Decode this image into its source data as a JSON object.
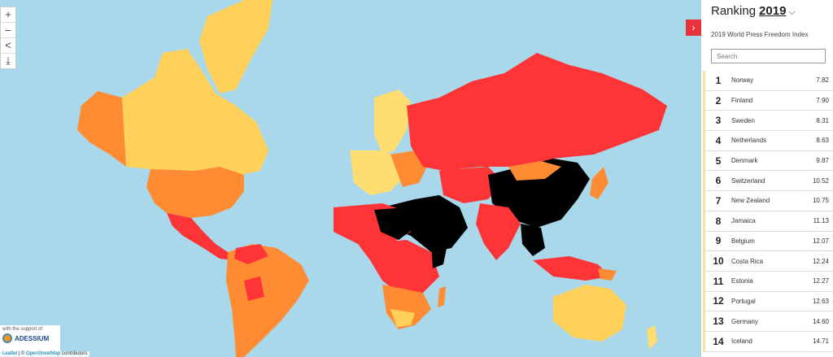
{
  "map": {
    "zoom_in": "+",
    "zoom_out": "–",
    "share_icon": "share-icon",
    "download_icon": "download-icon",
    "support_text": "with the support of",
    "support_logo": "ADESSIUM",
    "attribution_leaflet": "Leaflet",
    "attribution_sep": " | © ",
    "attribution_osm": "OpenStreetMap",
    "attribution_tail": " contributors",
    "colors": {
      "good": "#ffdd70",
      "satisfactory": "#ffd05a",
      "problematic": "#ff8c32",
      "difficult": "#ff3437",
      "very_serious": "#000000",
      "sea": "#a9d8ea"
    }
  },
  "panel": {
    "toggle_icon": "›",
    "title": "Ranking",
    "year": "2019",
    "subtitle": "2019 World Press Freedom Index",
    "search_placeholder": "Search",
    "rows": [
      {
        "rank": "1",
        "country": "Norway",
        "score": "7.82"
      },
      {
        "rank": "2",
        "country": "Finland",
        "score": "7.90"
      },
      {
        "rank": "3",
        "country": "Sweden",
        "score": "8.31"
      },
      {
        "rank": "4",
        "country": "Netherlands",
        "score": "8.63"
      },
      {
        "rank": "5",
        "country": "Denmark",
        "score": "9.87"
      },
      {
        "rank": "6",
        "country": "Switzerland",
        "score": "10.52"
      },
      {
        "rank": "7",
        "country": "New Zealand",
        "score": "10.75"
      },
      {
        "rank": "8",
        "country": "Jamaica",
        "score": "11.13"
      },
      {
        "rank": "9",
        "country": "Belgium",
        "score": "12.07"
      },
      {
        "rank": "10",
        "country": "Costa Rica",
        "score": "12.24"
      },
      {
        "rank": "11",
        "country": "Estonia",
        "score": "12.27"
      },
      {
        "rank": "12",
        "country": "Portugal",
        "score": "12.63"
      },
      {
        "rank": "13",
        "country": "Germany",
        "score": "14.60"
      },
      {
        "rank": "14",
        "country": "Iceland",
        "score": "14.71"
      }
    ]
  }
}
